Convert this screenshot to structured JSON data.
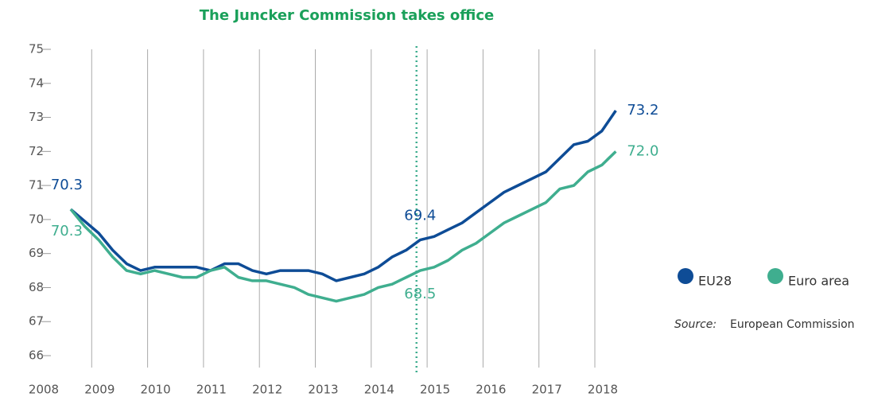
{
  "chart_data": {
    "type": "line",
    "event": {
      "label": "The Juncker Commission takes office",
      "x": 2014.81
    },
    "x": [
      2008.625,
      2008.875,
      2009.125,
      2009.375,
      2009.625,
      2009.875,
      2010.125,
      2010.375,
      2010.625,
      2010.875,
      2011.125,
      2011.375,
      2011.625,
      2011.875,
      2012.125,
      2012.375,
      2012.625,
      2012.875,
      2013.125,
      2013.375,
      2013.625,
      2013.875,
      2014.125,
      2014.375,
      2014.625,
      2014.875,
      2015.125,
      2015.375,
      2015.625,
      2015.875,
      2016.125,
      2016.375,
      2016.625,
      2016.875,
      2017.125,
      2017.375,
      2017.625,
      2017.875,
      2018.125,
      2018.375
    ],
    "series": [
      {
        "name": "EU28",
        "color": "#0e4c96",
        "values": [
          70.3,
          69.95,
          69.6,
          69.1,
          68.7,
          68.5,
          68.6,
          68.6,
          68.6,
          68.6,
          68.5,
          68.7,
          68.7,
          68.5,
          68.4,
          68.5,
          68.5,
          68.5,
          68.4,
          68.2,
          68.3,
          68.4,
          68.6,
          68.9,
          69.1,
          69.4,
          69.5,
          69.7,
          69.9,
          70.2,
          70.5,
          70.8,
          71.0,
          71.2,
          71.4,
          71.8,
          72.2,
          72.3,
          72.6,
          73.2
        ],
        "value_labels": [
          "70.3",
          null,
          null,
          null,
          null,
          null,
          null,
          null,
          null,
          null,
          null,
          null,
          null,
          null,
          null,
          null,
          null,
          null,
          null,
          null,
          null,
          null,
          null,
          null,
          null,
          "69.4",
          null,
          null,
          null,
          null,
          null,
          null,
          null,
          null,
          null,
          null,
          null,
          null,
          null,
          "73.2"
        ]
      },
      {
        "name": "Euro area",
        "color": "#3fae8f",
        "values": [
          70.3,
          69.8,
          69.4,
          68.9,
          68.5,
          68.4,
          68.5,
          68.4,
          68.3,
          68.3,
          68.5,
          68.6,
          68.3,
          68.2,
          68.2,
          68.1,
          68.0,
          67.8,
          67.7,
          67.6,
          67.7,
          67.8,
          68.0,
          68.1,
          68.3,
          68.5,
          68.6,
          68.8,
          69.1,
          69.3,
          69.6,
          69.9,
          70.1,
          70.3,
          70.5,
          70.9,
          71.0,
          71.4,
          71.6,
          72.0
        ],
        "value_labels": [
          "70.3",
          null,
          null,
          null,
          null,
          null,
          null,
          null,
          null,
          null,
          null,
          null,
          null,
          null,
          null,
          null,
          null,
          null,
          null,
          null,
          null,
          null,
          null,
          null,
          null,
          "68.5",
          null,
          null,
          null,
          null,
          null,
          null,
          null,
          null,
          null,
          null,
          null,
          null,
          null,
          "72.0"
        ]
      }
    ],
    "xlim": [
      2008,
      2019
    ],
    "xticks": [
      2008,
      2009,
      2010,
      2011,
      2012,
      2013,
      2014,
      2015,
      2016,
      2017,
      2018
    ],
    "ylim": [
      65.65,
      75
    ],
    "yticks": [
      66,
      67,
      68,
      69,
      70,
      71,
      72,
      73,
      74,
      75
    ],
    "grid": true,
    "legend": "bottom-right",
    "source_label": "Source:",
    "source": "European Commission"
  }
}
